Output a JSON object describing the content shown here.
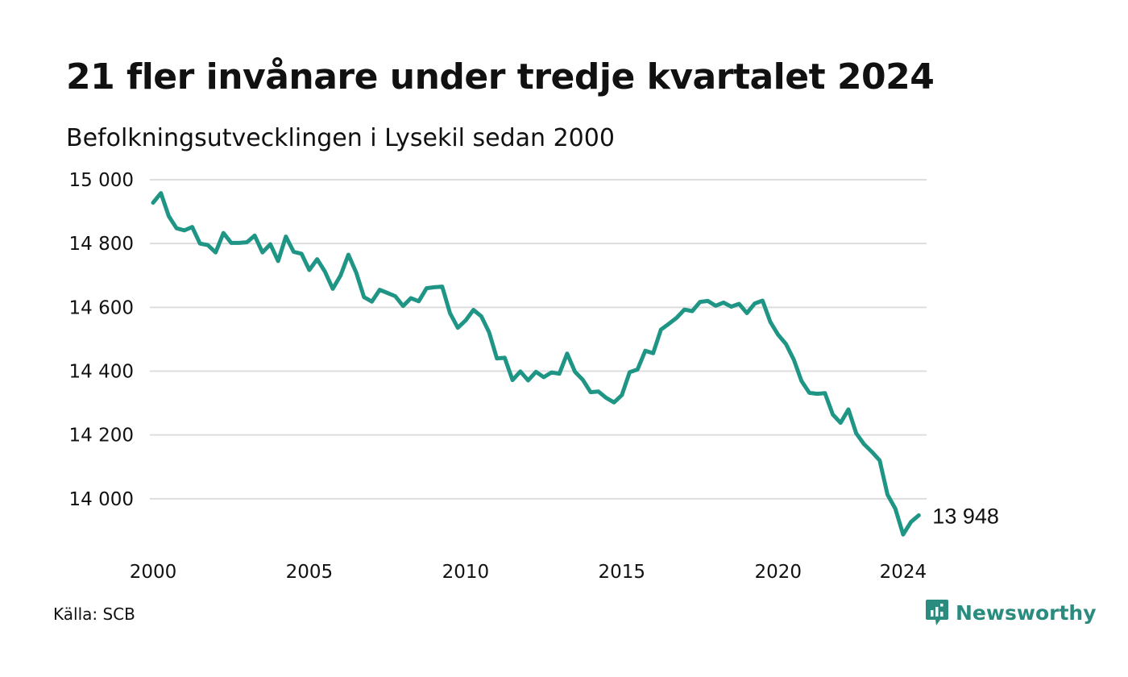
{
  "header": {
    "title": "21 fler invånare under tredje kvartalet 2024",
    "subtitle": "Befolkningsutvecklingen i Lysekil sedan 2000"
  },
  "footer": {
    "source": "Källa: SCB",
    "brand": "Newsworthy",
    "brand_icon": "newsworthy-logo-icon"
  },
  "colors": {
    "line": "#1f9585",
    "grid": "#dddddd",
    "brand": "#2a8c7e"
  },
  "chart_data": {
    "type": "line",
    "title": "21 fler invånare under tredje kvartalet 2024",
    "subtitle": "Befolkningsutvecklingen i Lysekil sedan 2000",
    "ylim": [
      13880,
      15000
    ],
    "xlim": [
      2000,
      2024.75
    ],
    "y_ticks": [
      15000,
      14800,
      14600,
      14400,
      14200,
      14000
    ],
    "y_tick_labels": [
      "15 000",
      "14 800",
      "14 600",
      "14 400",
      "14 200",
      "14 000"
    ],
    "x_ticks": [
      2000,
      2005,
      2010,
      2015,
      2020,
      2024
    ],
    "x_tick_labels": [
      "2000",
      "2005",
      "2010",
      "2015",
      "2020",
      "2024"
    ],
    "grid": "horizontal",
    "end_label": "13 948",
    "series": [
      {
        "x": [
          "2000-01",
          "2000-02",
          "2000-03",
          "2000-04",
          "2001-01",
          "2001-02",
          "2001-03",
          "2001-04",
          "2002-01",
          "2002-02",
          "2002-03",
          "2002-04",
          "2003-01",
          "2003-02",
          "2003-03",
          "2003-04",
          "2004-01",
          "2004-02",
          "2004-03",
          "2004-04",
          "2005-01",
          "2005-02",
          "2005-03",
          "2005-04",
          "2006-01",
          "2006-02",
          "2006-03",
          "2006-04",
          "2007-01",
          "2007-02",
          "2007-03",
          "2007-04",
          "2008-01",
          "2008-02",
          "2008-03",
          "2008-04",
          "2009-01",
          "2009-02",
          "2009-03",
          "2009-04",
          "2010-01",
          "2010-02",
          "2010-03",
          "2010-04",
          "2011-01",
          "2011-02",
          "2011-03",
          "2011-04",
          "2012-01",
          "2012-02",
          "2012-03",
          "2012-04",
          "2013-01",
          "2013-02",
          "2013-03",
          "2013-04",
          "2014-01",
          "2014-02",
          "2014-03",
          "2014-04",
          "2015-01",
          "2015-02",
          "2015-03",
          "2015-04",
          "2016-01",
          "2016-02",
          "2016-03",
          "2016-04",
          "2017-01",
          "2017-02",
          "2017-03",
          "2017-04",
          "2018-01",
          "2018-02",
          "2018-03",
          "2018-04",
          "2019-01",
          "2019-02",
          "2019-03",
          "2019-04",
          "2020-01",
          "2020-02",
          "2020-03",
          "2020-04",
          "2021-01",
          "2021-02",
          "2021-03",
          "2021-04",
          "2022-01",
          "2022-02",
          "2022-03",
          "2022-04",
          "2023-01",
          "2023-02",
          "2023-03",
          "2023-04",
          "2024-01",
          "2024-02",
          "2024-03"
        ],
        "values": [
          14928,
          14958,
          14886,
          14848,
          14841,
          14852,
          14800,
          14795,
          14772,
          14833,
          14802,
          14802,
          14804,
          14825,
          14772,
          14798,
          14745,
          14822,
          14774,
          14768,
          14717,
          14751,
          14712,
          14658,
          14700,
          14765,
          14709,
          14632,
          14618,
          14655,
          14645,
          14635,
          14604,
          14629,
          14619,
          14660,
          14663,
          14665,
          14582,
          14536,
          14559,
          14592,
          14572,
          14522,
          14440,
          14442,
          14372,
          14399,
          14371,
          14398,
          14381,
          14396,
          14392,
          14455,
          14398,
          14373,
          14334,
          14336,
          14316,
          14302,
          14325,
          14397,
          14405,
          14464,
          14456,
          14530,
          14548,
          14567,
          14593,
          14588,
          14617,
          14620,
          14605,
          14615,
          14602,
          14611,
          14582,
          14612,
          14621,
          14554,
          14514,
          14485,
          14436,
          14369,
          14332,
          14329,
          14331,
          14264,
          14238,
          14280,
          14205,
          14171,
          14147,
          14120,
          14013,
          13969,
          13888,
          13927,
          13948
        ]
      }
    ]
  }
}
